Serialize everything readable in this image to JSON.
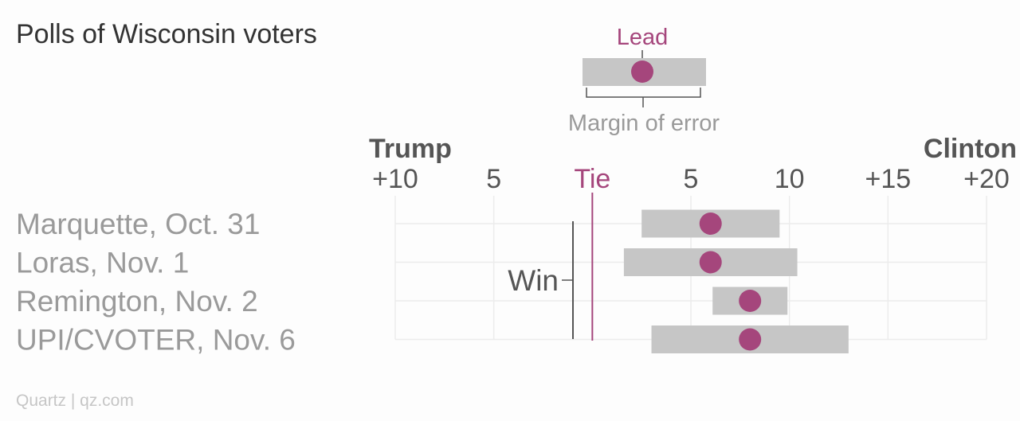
{
  "chart_data": {
    "type": "dot-range",
    "title": "Polls of Wisconsin voters",
    "source": "Quartz | qz.com",
    "x_axis": {
      "range": [
        -10,
        20
      ],
      "ticks": [
        {
          "value": -10,
          "label": "+10"
        },
        {
          "value": -5,
          "label": "5"
        },
        {
          "value": 0,
          "label": "Tie"
        },
        {
          "value": 5,
          "label": "5"
        },
        {
          "value": 10,
          "label": "10"
        },
        {
          "value": 15,
          "label": "+15"
        },
        {
          "value": 20,
          "label": "+20"
        }
      ],
      "left_label": "Trump",
      "right_label": "Clinton"
    },
    "series": [
      {
        "poll": "Marquette, Oct. 31",
        "lead": 6,
        "moe_low": 2.5,
        "moe_high": 9.5
      },
      {
        "poll": "Loras, Nov. 1",
        "lead": 6,
        "moe_low": 1.6,
        "moe_high": 10.4
      },
      {
        "poll": "Remington, Nov. 2",
        "lead": 8,
        "moe_low": 6.1,
        "moe_high": 9.9
      },
      {
        "poll": "UPI/CVOTER, Nov. 6",
        "lead": 8,
        "moe_low": 3,
        "moe_high": 13
      }
    ],
    "legend": {
      "lead_label": "Lead",
      "moe_label": "Margin of error"
    },
    "annotation": {
      "win_label": "Win"
    },
    "grid": true,
    "colors": {
      "lead": "#a5467c",
      "moe": "#c6c6c6",
      "grid": "#ececec",
      "tie_line": "#a5467c",
      "win_line": "#555555"
    }
  }
}
